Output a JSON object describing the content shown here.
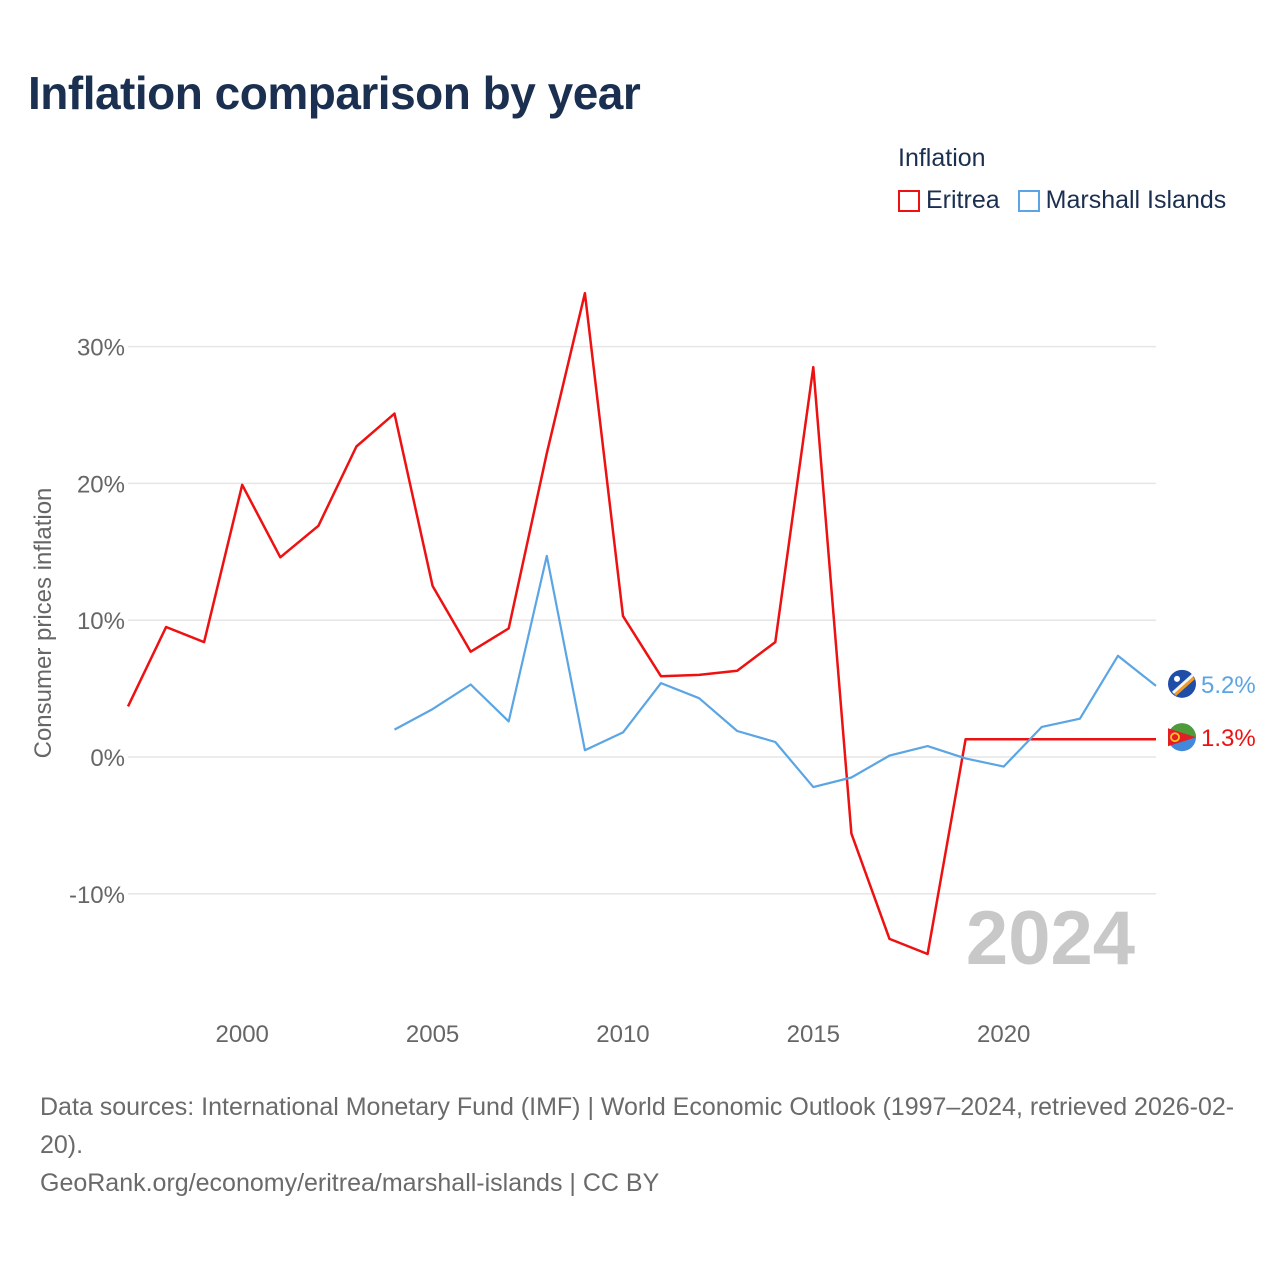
{
  "title": "Inflation comparison by year",
  "legend": {
    "title": "Inflation",
    "items": [
      {
        "label": "Eritrea",
        "color": "#ee1111"
      },
      {
        "label": "Marshall Islands",
        "color": "#5ba5e4"
      }
    ]
  },
  "watermark_year": "2024",
  "footer": {
    "sources": "Data sources: International Monetary Fund (IMF) | World Economic Outlook (1997–2024, retrieved 2026-02-20).",
    "credit": "GeoRank.org/economy/eritrea/marshall-islands | CC BY"
  },
  "chart_data": {
    "type": "line",
    "title": "Inflation comparison by year",
    "xlabel": "",
    "ylabel": "Consumer prices inflation",
    "xlim": [
      1997,
      2024
    ],
    "ylim": [
      -17,
      37
    ],
    "x_ticks": [
      2000,
      2005,
      2010,
      2015,
      2020
    ],
    "y_ticks": [
      -10,
      0,
      10,
      20,
      30
    ],
    "y_tick_labels": [
      "-10%",
      "0%",
      "10%",
      "20%",
      "30%"
    ],
    "grid": true,
    "series": [
      {
        "name": "Eritrea",
        "color": "#ee1111",
        "end_label": "1.3%",
        "x": [
          1997,
          1998,
          1999,
          2000,
          2001,
          2002,
          2003,
          2004,
          2005,
          2006,
          2007,
          2008,
          2009,
          2010,
          2011,
          2012,
          2013,
          2014,
          2015,
          2016,
          2017,
          2018,
          2019,
          2024
        ],
        "values": [
          3.7,
          9.5,
          8.4,
          19.9,
          14.6,
          16.9,
          22.7,
          25.1,
          12.5,
          7.7,
          9.4,
          22.2,
          33.9,
          10.3,
          5.9,
          6.0,
          6.3,
          8.4,
          28.5,
          -5.6,
          -13.3,
          -14.4,
          1.3,
          1.3
        ]
      },
      {
        "name": "Marshall Islands",
        "color": "#5ba5e4",
        "end_label": "5.2%",
        "x": [
          2004,
          2005,
          2006,
          2007,
          2008,
          2009,
          2010,
          2011,
          2012,
          2013,
          2014,
          2015,
          2016,
          2017,
          2018,
          2019,
          2020,
          2021,
          2022,
          2023,
          2024
        ],
        "values": [
          2.0,
          3.5,
          5.3,
          2.6,
          14.7,
          0.5,
          1.8,
          5.4,
          4.3,
          1.9,
          1.1,
          -2.2,
          -1.5,
          0.1,
          0.8,
          -0.1,
          -0.7,
          2.2,
          2.8,
          7.4,
          5.2
        ]
      }
    ]
  }
}
